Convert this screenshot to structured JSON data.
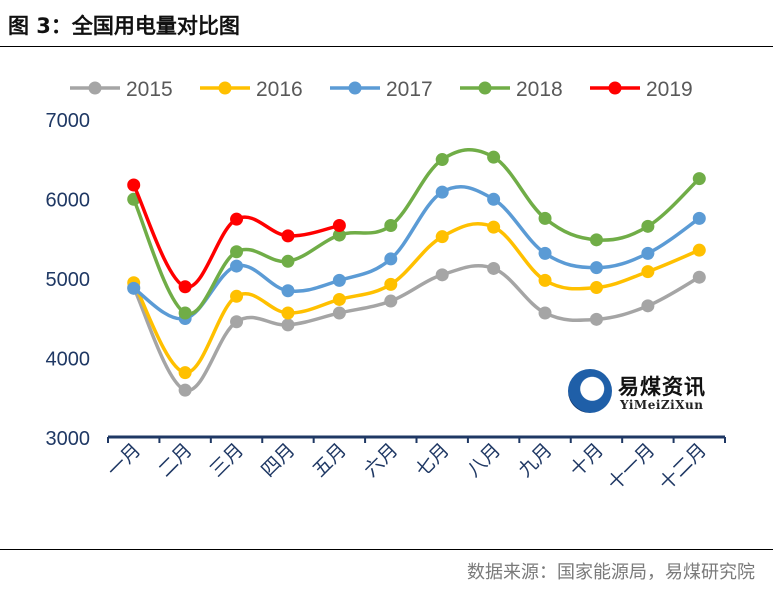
{
  "figure": {
    "title": "图 3：全国用电量对比图",
    "source": "数据来源：国家能源局，易煤研究院"
  },
  "watermark": {
    "name_cn": "易煤资讯",
    "name_en": "YiMeiZiXun"
  },
  "chart_data": {
    "type": "line",
    "title": "",
    "xlabel": "",
    "ylabel": "",
    "ylim": [
      3000,
      7000
    ],
    "yticks": [
      "3000",
      "4000",
      "5000",
      "6000",
      "7000"
    ],
    "grid": false,
    "legend_position": "top",
    "categories": [
      "一月",
      "二月",
      "三月",
      "四月",
      "五月",
      "六月",
      "七月",
      "八月",
      "九月",
      "十月",
      "十一月",
      "十二月"
    ],
    "series": [
      {
        "name": "2015",
        "color": "#a5a5a5",
        "values": [
          4880,
          3590,
          4450,
          4410,
          4560,
          4710,
          5040,
          5120,
          4560,
          4480,
          4650,
          5010
        ]
      },
      {
        "name": "2016",
        "color": "#ffc000",
        "values": [
          4940,
          3810,
          4770,
          4560,
          4730,
          4920,
          5520,
          5640,
          4970,
          4880,
          5080,
          5350
        ]
      },
      {
        "name": "2017",
        "color": "#5b9bd5",
        "values": [
          4870,
          4490,
          5150,
          4840,
          4970,
          5240,
          6080,
          5990,
          5310,
          5130,
          5310,
          5750
        ]
      },
      {
        "name": "2018",
        "color": "#70ad47",
        "values": [
          5990,
          4560,
          5330,
          5210,
          5540,
          5660,
          6490,
          6520,
          5750,
          5480,
          5650,
          6250
        ]
      },
      {
        "name": "2019",
        "color": "#ff0000",
        "values": [
          6170,
          4890,
          5740,
          5530,
          5660,
          null,
          null,
          null,
          null,
          null,
          null,
          null
        ]
      }
    ]
  }
}
